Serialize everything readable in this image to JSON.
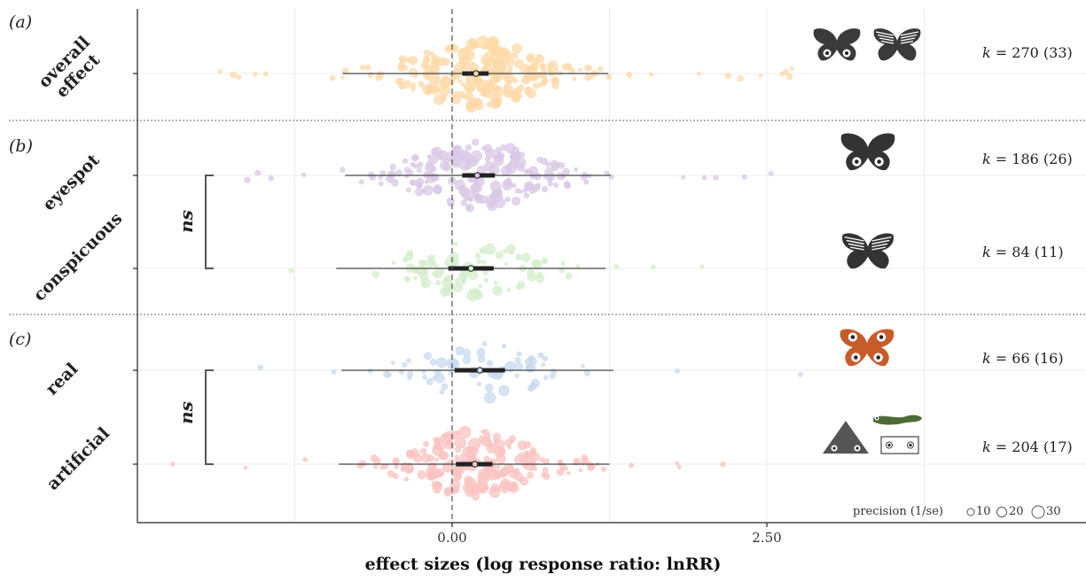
{
  "chart_data": {
    "type": "scatter",
    "subtype": "orchard-plot",
    "xlabel": "effect sizes (log response ratio: lnRR)",
    "xlim": [
      -2.0,
      4.0
    ],
    "x_ticks": [
      {
        "value": 0.0,
        "label": "0.00"
      },
      {
        "value": 2.5,
        "label": "2.50"
      }
    ],
    "grid": true,
    "panels": [
      {
        "letter": "(a)",
        "groups": [
          {
            "name": "overall effect",
            "name_lines": [
              "overall",
              "effect"
            ],
            "k_label": "k",
            "k_value": "= 270 (33)",
            "estimate": 0.19,
            "ci": [
              0.08,
              0.29
            ],
            "pi": [
              -0.87,
              1.24
            ],
            "color": "#FDD9A8",
            "n_points": 270
          }
        ]
      },
      {
        "letter": "(b)",
        "groups": [
          {
            "name": "eyespot",
            "name_lines": [
              "eyespot"
            ],
            "k_label": "k",
            "k_value": "= 186 (26)",
            "estimate": 0.2,
            "ci": [
              0.08,
              0.34
            ],
            "pi": [
              -0.85,
              1.26
            ],
            "color": "#D9C8E6",
            "n_points": 186
          },
          {
            "name": "conspicuous",
            "name_lines": [
              "conspicuous"
            ],
            "k_label": "k",
            "k_value": "= 84 (11)",
            "estimate": 0.15,
            "ci": [
              -0.03,
              0.33
            ],
            "pi": [
              -0.92,
              1.22
            ],
            "color": "#D4EDCB",
            "n_points": 84
          }
        ],
        "comparison": "ns"
      },
      {
        "letter": "(c)",
        "groups": [
          {
            "name": "real",
            "name_lines": [
              "real"
            ],
            "k_label": "k",
            "k_value": "= 66 (16)",
            "estimate": 0.22,
            "ci": [
              0.02,
              0.42
            ],
            "pi": [
              -0.88,
              1.28
            ],
            "color": "#C8DAEE",
            "n_points": 66
          },
          {
            "name": "artificial",
            "name_lines": [
              "artificial"
            ],
            "k_label": "k",
            "k_value": "= 204 (17)",
            "estimate": 0.18,
            "ci": [
              0.03,
              0.32
            ],
            "pi": [
              -0.9,
              1.25
            ],
            "color": "#F9C3C0",
            "n_points": 204
          }
        ],
        "comparison": "ns"
      }
    ],
    "legend": {
      "title": "precision (1/se)",
      "sizes": [
        {
          "value": 10,
          "label": "10"
        },
        {
          "value": 20,
          "label": "20"
        },
        {
          "value": 30,
          "label": "30"
        }
      ]
    },
    "icons": [
      "butterfly-eyespot-icon",
      "butterfly-striped-icon",
      "butterfly-orange-icon",
      "triangle-eyespot-icon",
      "caterpillar-icon",
      "box-eyespot-icon"
    ]
  }
}
